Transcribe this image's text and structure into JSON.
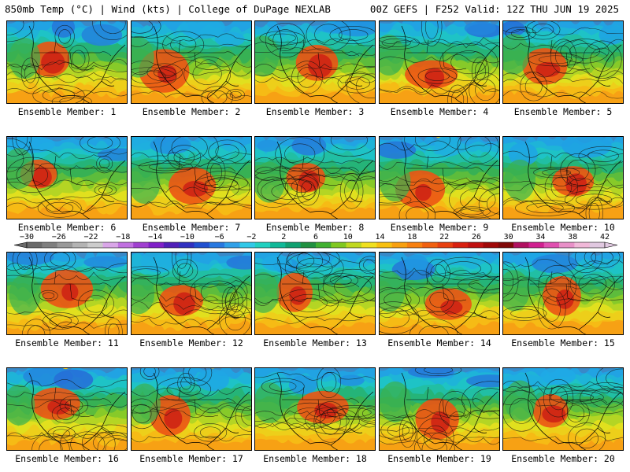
{
  "header": {
    "title": "850mb Temp (°C) | Wind (kts) | College of DuPage NEXLAB",
    "run_info": "00Z GEFS | F252 Valid: 12Z THU JUN 19 2025"
  },
  "panels": [
    {
      "label": "Ensemble Member: 1"
    },
    {
      "label": "Ensemble Member: 2"
    },
    {
      "label": "Ensemble Member: 3"
    },
    {
      "label": "Ensemble Member: 4"
    },
    {
      "label": "Ensemble Member: 5"
    },
    {
      "label": "Ensemble Member: 6"
    },
    {
      "label": "Ensemble Member: 7"
    },
    {
      "label": "Ensemble Member: 8"
    },
    {
      "label": "Ensemble Member: 9"
    },
    {
      "label": "Ensemble Member: 10"
    },
    {
      "label": "Ensemble Member: 11"
    },
    {
      "label": "Ensemble Member: 12"
    },
    {
      "label": "Ensemble Member: 13"
    },
    {
      "label": "Ensemble Member: 14"
    },
    {
      "label": "Ensemble Member: 15"
    },
    {
      "label": "Ensemble Member: 16"
    },
    {
      "label": "Ensemble Member: 17"
    },
    {
      "label": "Ensemble Member: 18"
    },
    {
      "label": "Ensemble Member: 19"
    },
    {
      "label": "Ensemble Member: 20"
    }
  ],
  "colorbar": {
    "labels": [
      "−30",
      "−26",
      "−22",
      "−18",
      "−14",
      "−10",
      "−6",
      "−2",
      "2",
      "6",
      "10",
      "14",
      "18",
      "22",
      "26",
      "30",
      "34",
      "38",
      "42"
    ],
    "colors": [
      "#6a6a6a",
      "#7f7f7f",
      "#999999",
      "#b3b3b3",
      "#cccccc",
      "#d9a6e8",
      "#c070e0",
      "#a040d0",
      "#8020c8",
      "#5020b8",
      "#3030c0",
      "#2050d0",
      "#2878e0",
      "#30a0e8",
      "#30c8e8",
      "#20d0c0",
      "#10b898",
      "#10a070",
      "#209040",
      "#40b030",
      "#80c820",
      "#c0d820",
      "#f0e020",
      "#f8c010",
      "#f8a010",
      "#f88010",
      "#f06010",
      "#e84010",
      "#d82010",
      "#c01010",
      "#a00808",
      "#800808",
      "#b01060",
      "#d02090",
      "#e050b0",
      "#e890c8",
      "#f0b8d8",
      "#e0c8e0"
    ]
  }
}
